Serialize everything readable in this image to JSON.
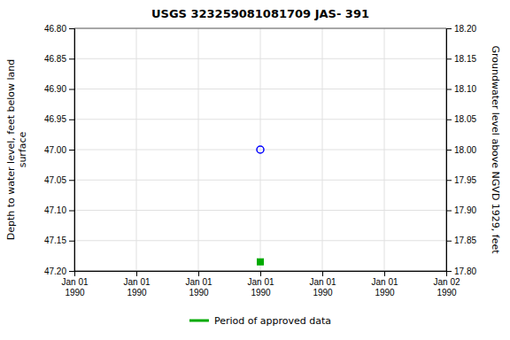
{
  "chart_data": {
    "type": "scatter",
    "title": "USGS 323259081081709 JAS- 391",
    "y_label": "Depth to water level, feet below land\nsurface",
    "y2_label": "Groundwater level above NGVD 1929, feet",
    "categories": [
      "Jan 01\n1990",
      "Jan 01\n1990",
      "Jan 01\n1990",
      "Jan 01\n1990",
      "Jan 01\n1990",
      "Jan 01\n1990",
      "Jan 02\n1990"
    ],
    "series": [
      {
        "color": "blue",
        "marker": "circle-open",
        "values": [
          null,
          null,
          null,
          47.0,
          null,
          null,
          null
        ]
      },
      {
        "name": "Period of approved data",
        "color": "#00aa00",
        "marker": "square",
        "values": [
          null,
          null,
          null,
          47.185,
          null,
          null,
          null
        ]
      }
    ],
    "ylim": [
      47.2,
      46.8
    ],
    "yticks": [
      {
        "value": 46.8,
        "label": "46.80"
      },
      46.85,
      {
        "value": 46.9,
        "label": "46.90"
      },
      46.95,
      {
        "value": 47.0,
        "label": "47.00"
      },
      47.05,
      {
        "value": 47.1,
        "label": "47.10"
      },
      47.15,
      {
        "value": 47.2,
        "label": "47.20"
      }
    ],
    "y2lim": [
      17.8,
      18.2
    ],
    "y2ticks": [
      {
        "value": 18.2,
        "label": "18.20"
      },
      18.15,
      {
        "value": 18.1,
        "label": "18.10"
      },
      18.05,
      {
        "value": 18.0,
        "label": "18.00"
      },
      17.95,
      {
        "value": 17.9,
        "label": "17.90"
      },
      17.85,
      {
        "value": 17.8,
        "label": "17.80"
      }
    ],
    "grid": true,
    "legend": "bottom"
  }
}
